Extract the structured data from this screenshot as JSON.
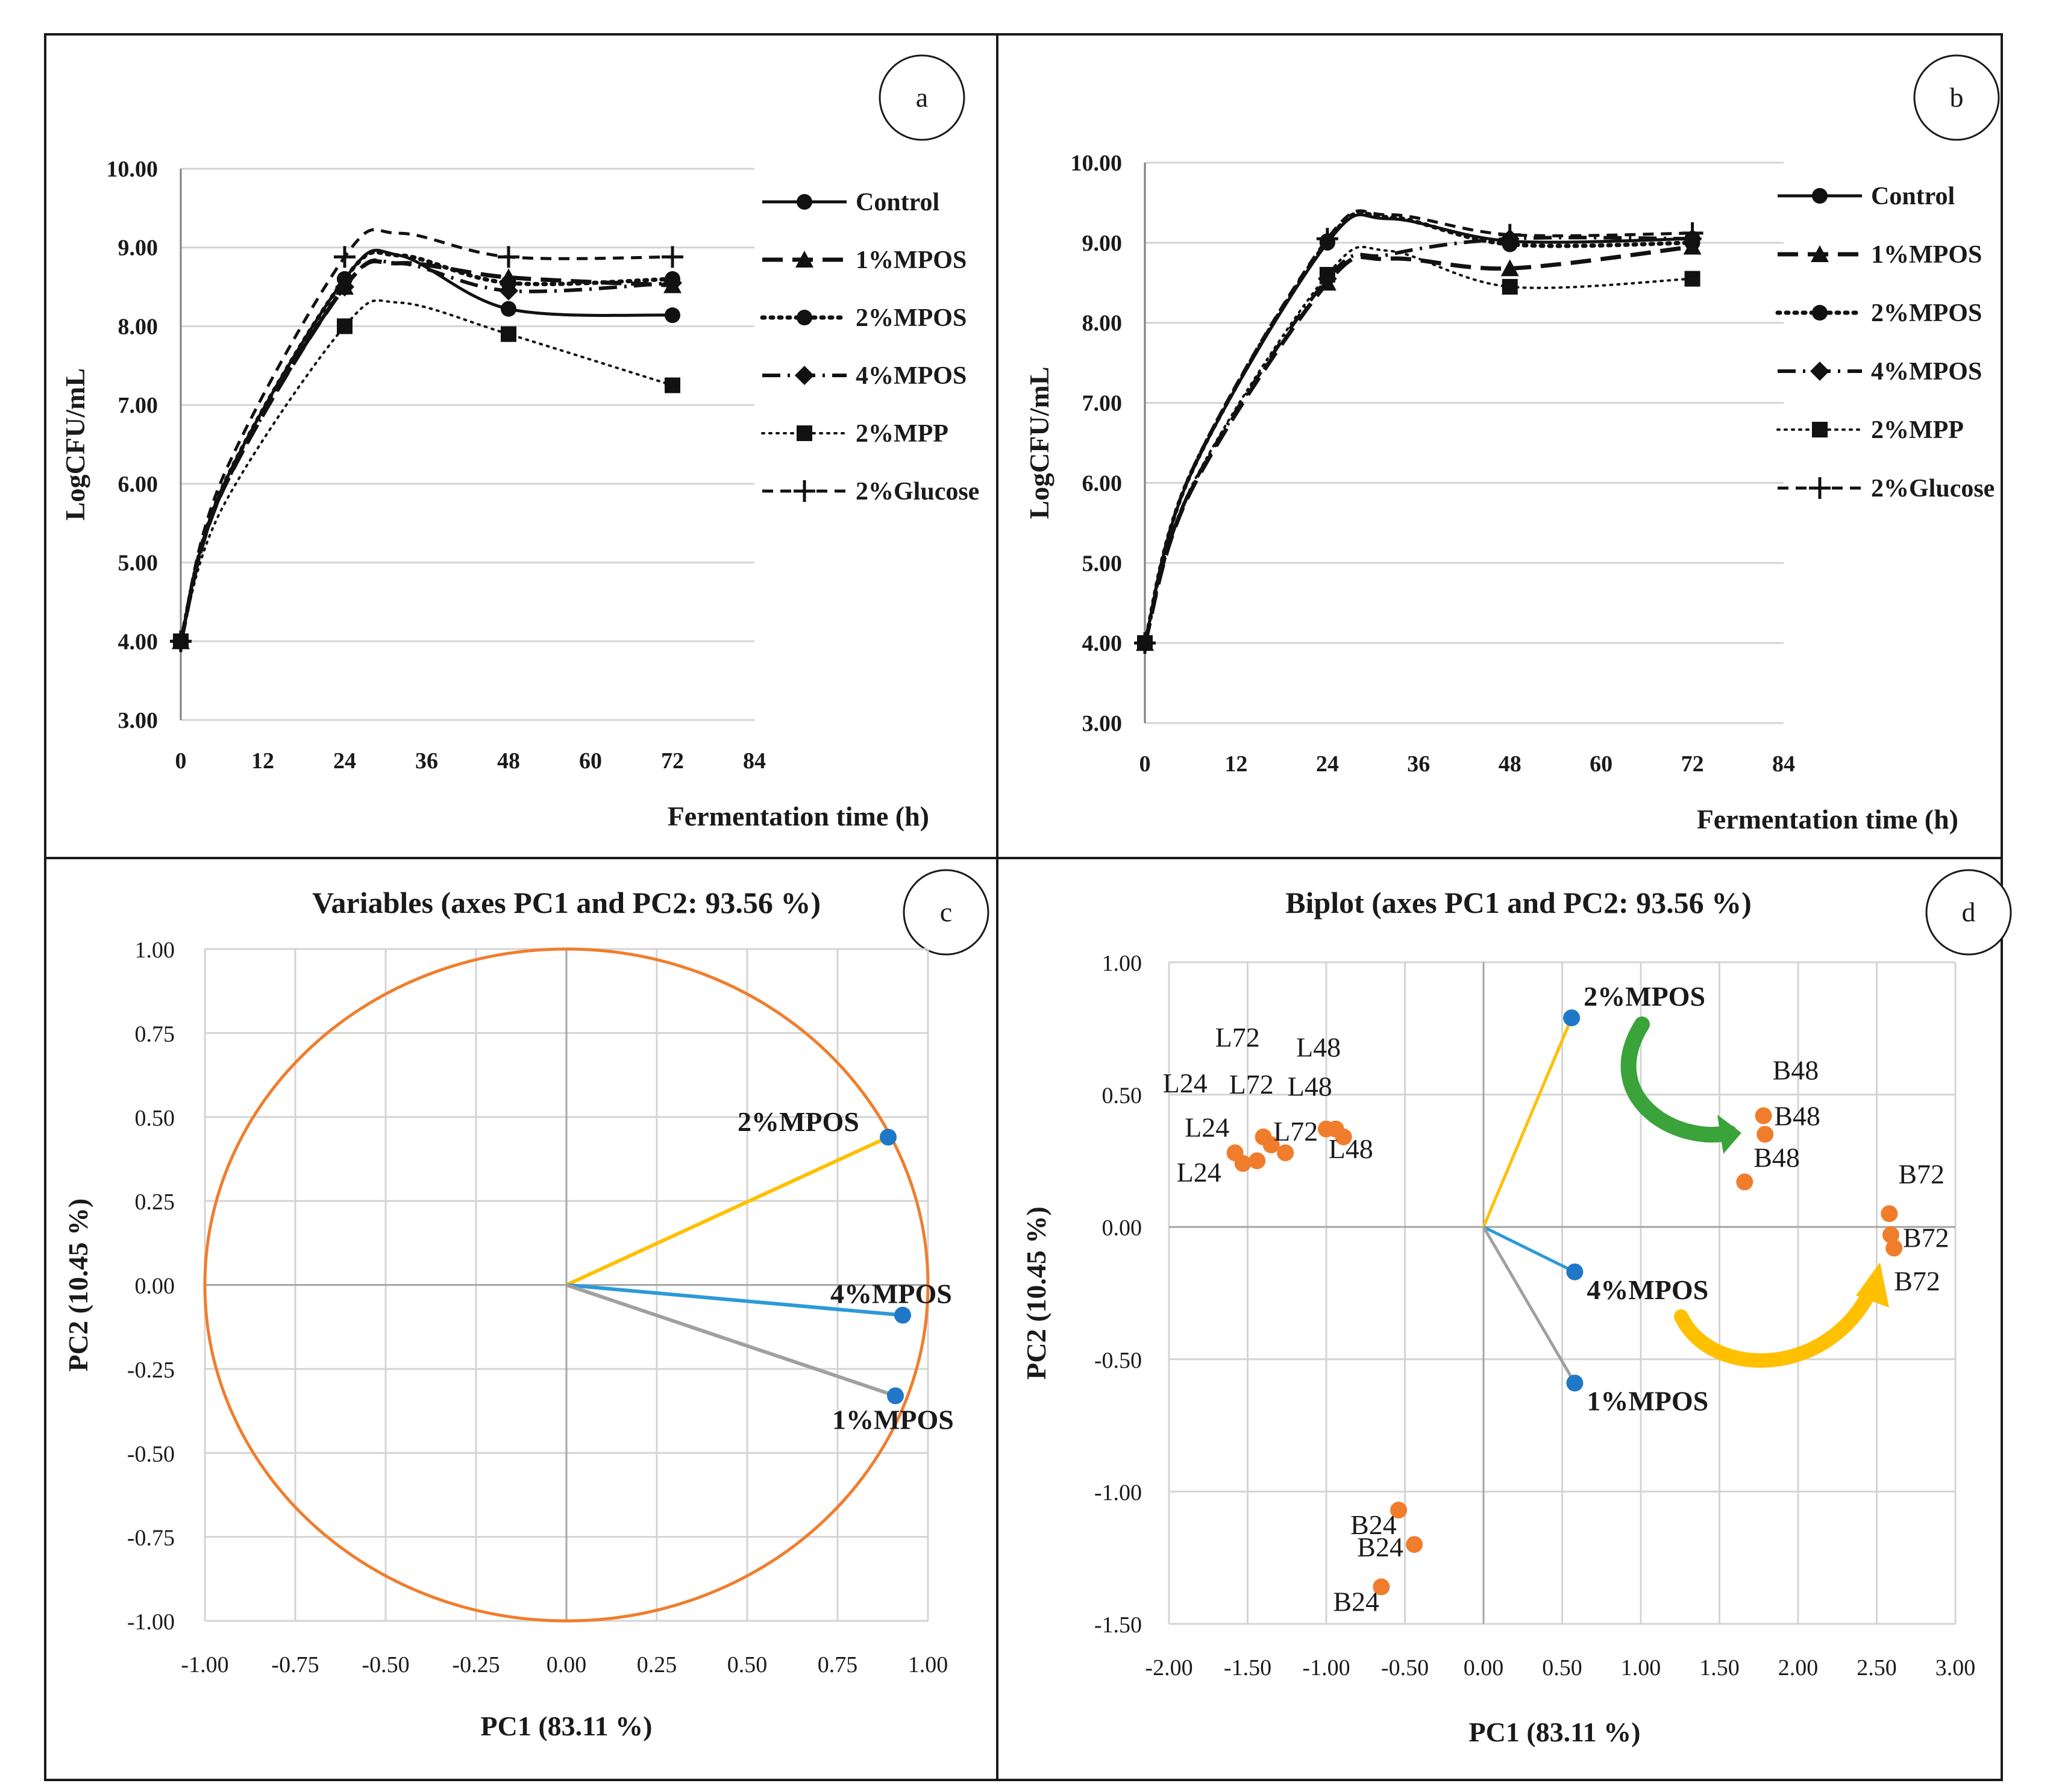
{
  "panels": {
    "a": {
      "badge": "a"
    },
    "b": {
      "badge": "b"
    },
    "c": {
      "badge": "c"
    },
    "d": {
      "badge": "d"
    }
  },
  "colors": {
    "circle": "#f07d2c",
    "points_orange": "#f07d2c",
    "points_blue": "#1f77c8",
    "vec_2MPOS": "#ffc000",
    "vec_4MPOS": "#2b9ad8",
    "vec_1MPOS": "#a0a0a0",
    "arrow_green": "#3aa33a",
    "arrow_yellow": "#ffc000"
  },
  "chart_data": [
    {
      "id": "a",
      "type": "line",
      "xlabel": "Fermentation time (h)",
      "ylabel": "LogCFU/mL",
      "xlim": [
        0,
        84
      ],
      "ylim": [
        3,
        10
      ],
      "xticks": [
        0,
        12,
        24,
        36,
        48,
        60,
        72,
        84
      ],
      "xtick_labels": [
        "0",
        "12",
        "24",
        "36",
        "48",
        "60",
        "72",
        "84"
      ],
      "yticks": [
        3,
        4,
        5,
        6,
        7,
        8,
        9,
        10
      ],
      "ytick_labels": [
        "3.00",
        "4.00",
        "5.00",
        "6.00",
        "7.00",
        "8.00",
        "9.00",
        "10.00"
      ],
      "x": [
        0,
        24,
        48,
        72
      ],
      "series": [
        {
          "name": "Control",
          "style": "solid",
          "marker": "circle",
          "values": [
            4.0,
            8.6,
            8.22,
            8.14
          ]
        },
        {
          "name": "1%MPOS",
          "style": "longdash",
          "marker": "triangle",
          "values": [
            4.0,
            8.5,
            8.62,
            8.52
          ]
        },
        {
          "name": "2%MPOS",
          "style": "dotted",
          "marker": "circle",
          "values": [
            4.0,
            8.6,
            8.55,
            8.6
          ]
        },
        {
          "name": "4%MPOS",
          "style": "dashdot",
          "marker": "diamond",
          "values": [
            4.0,
            8.5,
            8.45,
            8.55
          ]
        },
        {
          "name": "2%MPP",
          "style": "fine",
          "marker": "square",
          "values": [
            4.0,
            8.0,
            7.9,
            7.25
          ]
        },
        {
          "name": "2%Glucose",
          "style": "dash",
          "marker": "plus",
          "values": [
            4.0,
            8.88,
            8.88,
            8.88
          ]
        }
      ]
    },
    {
      "id": "b",
      "type": "line",
      "xlabel": "Fermentation time (h)",
      "ylabel": "LogCFU/mL",
      "xlim": [
        0,
        84
      ],
      "ylim": [
        3,
        10
      ],
      "xticks": [
        0,
        12,
        24,
        36,
        48,
        60,
        72,
        84
      ],
      "xtick_labels": [
        "0",
        "12",
        "24",
        "36",
        "48",
        "60",
        "72",
        "84"
      ],
      "yticks": [
        3,
        4,
        5,
        6,
        7,
        8,
        9,
        10
      ],
      "ytick_labels": [
        "3.00",
        "4.00",
        "5.00",
        "6.00",
        "7.00",
        "8.00",
        "9.00",
        "10.00"
      ],
      "x": [
        0,
        24,
        48,
        72
      ],
      "series": [
        {
          "name": "Control",
          "style": "solid",
          "marker": "circle",
          "values": [
            4.0,
            9.0,
            9.02,
            9.05
          ]
        },
        {
          "name": "1%MPOS",
          "style": "longdash",
          "marker": "triangle",
          "values": [
            4.0,
            8.5,
            8.68,
            8.95
          ]
        },
        {
          "name": "2%MPOS",
          "style": "dotted",
          "marker": "circle",
          "values": [
            4.0,
            9.02,
            8.98,
            9.0
          ]
        },
        {
          "name": "4%MPOS",
          "style": "dashdot",
          "marker": "diamond",
          "values": [
            4.0,
            8.55,
            9.05,
            9.05
          ]
        },
        {
          "name": "2%MPP",
          "style": "fine",
          "marker": "square",
          "values": [
            4.0,
            8.6,
            8.45,
            8.55
          ]
        },
        {
          "name": "2%Glucose",
          "style": "dash",
          "marker": "plus",
          "values": [
            4.0,
            9.05,
            9.1,
            9.12
          ]
        }
      ]
    },
    {
      "id": "c",
      "type": "scatter",
      "title": "Variables (axes PC1 and PC2: 93.56 %)",
      "xlabel": "PC1 (83.11 %)",
      "ylabel": "PC2 (10.45 %)",
      "xlim": [
        -1,
        1
      ],
      "ylim": [
        -1,
        1
      ],
      "xticks": [
        -1,
        -0.75,
        -0.5,
        -0.25,
        0,
        0.25,
        0.5,
        0.75,
        1
      ],
      "xtick_labels": [
        "-1.00",
        "-0.75",
        "-0.50",
        "-0.25",
        "0.00",
        "0.25",
        "0.50",
        "0.75",
        "1.00"
      ],
      "yticks": [
        -1,
        -0.75,
        -0.5,
        -0.25,
        0,
        0.25,
        0.5,
        0.75,
        1
      ],
      "ytick_labels": [
        "-1.00",
        "-0.75",
        "-0.50",
        "-0.25",
        "0.00",
        "0.25",
        "0.50",
        "0.75",
        "1.00"
      ],
      "points": [
        {
          "label": "2%MPOS",
          "x": 0.89,
          "y": 0.44,
          "vector_color": "#ffc000"
        },
        {
          "label": "4%MPOS",
          "x": 0.93,
          "y": -0.09,
          "vector_color": "#2b9ad8"
        },
        {
          "label": "1%MPOS",
          "x": 0.91,
          "y": -0.33,
          "vector_color": "#a0a0a0"
        }
      ],
      "circle": "unit"
    },
    {
      "id": "d",
      "type": "scatter",
      "title": "Biplot (axes PC1 and PC2: 93.56 %)",
      "xlabel": "PC1 (83.11 %)",
      "ylabel": "PC2 (10.45 %)",
      "xlim": [
        -2,
        3
      ],
      "ylim": [
        -1.5,
        1
      ],
      "xticks": [
        -2,
        -1.5,
        -1,
        -0.5,
        0,
        0.5,
        1,
        1.5,
        2,
        2.5,
        3
      ],
      "xtick_labels": [
        "-2.00",
        "-1.50",
        "-1.00",
        "-0.50",
        "0.00",
        "0.50",
        "1.00",
        "1.50",
        "2.00",
        "2.50",
        "3.00"
      ],
      "yticks": [
        -1.5,
        -1,
        -0.5,
        0,
        0.5,
        1
      ],
      "ytick_labels": [
        "-1.50",
        "-1.00",
        "-0.50",
        "0.00",
        "0.50",
        "1.00"
      ],
      "variables": [
        {
          "label": "2%MPOS",
          "x": 0.56,
          "y": 0.79,
          "vector_color": "#ffc000"
        },
        {
          "label": "4%MPOS",
          "x": 0.58,
          "y": -0.17,
          "vector_color": "#2b9ad8"
        },
        {
          "label": "1%MPOS",
          "x": 0.58,
          "y": -0.59,
          "vector_color": "#a0a0a0"
        }
      ],
      "observations": [
        {
          "label": "L24",
          "x": -1.58,
          "y": 0.28
        },
        {
          "label": "L24",
          "x": -1.53,
          "y": 0.24
        },
        {
          "label": "L24",
          "x": -1.44,
          "y": 0.25
        },
        {
          "label": "L72",
          "x": -1.4,
          "y": 0.34
        },
        {
          "label": "L72",
          "x": -1.35,
          "y": 0.31
        },
        {
          "label": "L72",
          "x": -1.26,
          "y": 0.28
        },
        {
          "label": "L48",
          "x": -1.0,
          "y": 0.37
        },
        {
          "label": "L48",
          "x": -0.94,
          "y": 0.37
        },
        {
          "label": "L48",
          "x": -0.89,
          "y": 0.34
        },
        {
          "label": "B48",
          "x": 1.78,
          "y": 0.42
        },
        {
          "label": "B48",
          "x": 1.79,
          "y": 0.35
        },
        {
          "label": "B48",
          "x": 1.66,
          "y": 0.17
        },
        {
          "label": "B72",
          "x": 2.58,
          "y": 0.05
        },
        {
          "label": "B72",
          "x": 2.59,
          "y": -0.03
        },
        {
          "label": "B72",
          "x": 2.61,
          "y": -0.08
        },
        {
          "label": "B24",
          "x": -0.54,
          "y": -1.07
        },
        {
          "label": "B24",
          "x": -0.44,
          "y": -1.2
        },
        {
          "label": "B24",
          "x": -0.65,
          "y": -1.36
        }
      ]
    }
  ]
}
